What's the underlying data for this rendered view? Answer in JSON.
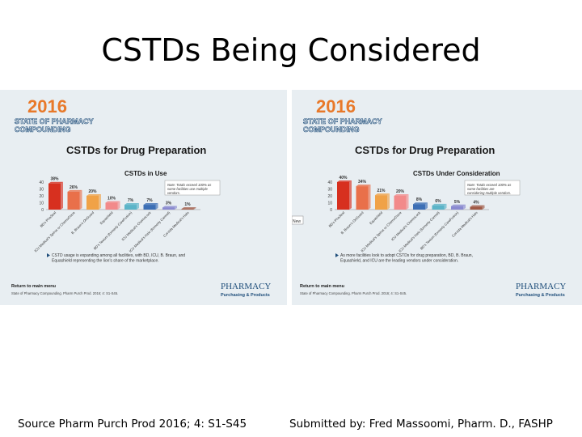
{
  "slide": {
    "title": "CSTDs Being Considered",
    "source": "Source Pharm Purch Prod 2016; 4: S1-S45",
    "submitted": "Submitted by: Fred Massoomi, Pharm. D., FASHP"
  },
  "panels": [
    {
      "year": "2016",
      "banner1": "STATE OF PHARMACY",
      "banner2": "COMPOUNDING",
      "heading": "CSTDs for Drug Preparation",
      "note": "Note: Totals exceed 100% as some facilities use multiple vendors.",
      "bullet": "CSTD usage is expanding among all facilities, with BD, ICU, B. Braun, and Equashield representing the lion's share of the marketplace.",
      "return_link": "Return to main menu",
      "citation": "State of Pharmacy Compounding. Pharm Purch Prod. 2016; 4: S1-S45.",
      "logo1": "PHARMACY",
      "logo2": "Purchasing & Products",
      "tab_label": ""
    },
    {
      "year": "2016",
      "banner1": "STATE OF PHARMACY",
      "banner2": "COMPOUNDING",
      "heading": "CSTDs for Drug Preparation",
      "note": "Note: Totals exceed 100% as some facilities are considering multiple vendors.",
      "bullet": "As more facilities look to adopt CSTDs for drug preparation, BD, B. Braun, Equashield, and ICU are the leading vendors under consideration.",
      "return_link": "Return to main menu",
      "citation": "State of Pharmacy Compounding. Pharm Purch Prod. 2016; 4: S1-S45.",
      "logo1": "PHARMACY",
      "logo2": "Purchasing & Products",
      "tab_label": "New"
    }
  ],
  "chart_data": [
    {
      "type": "bar",
      "title": "CSTDs in Use",
      "categories": [
        "BD's PhaSeal",
        "ICU Medical's Spiros or ChemoClave",
        "B. Braun's OnGuard",
        "Equashield",
        "BD's Texium (formerly CareFusion)",
        "ICU Medical's ChemoLock",
        "ICU Medical's Halo (formerly Carmel)",
        "Corvida Medical's Halo"
      ],
      "values": [
        38,
        26,
        20,
        10,
        7,
        7,
        3,
        1
      ],
      "value_labels": [
        "38%",
        "26%",
        "20%",
        "10%",
        "7%",
        "7%",
        "3%",
        "1%"
      ],
      "yticks": [
        0,
        10,
        20,
        30,
        40
      ],
      "ylim": [
        0,
        40
      ],
      "colors": [
        "#d7301f",
        "#e9704a",
        "#f0a247",
        "#f28a8a",
        "#5bb4c8",
        "#3c6fb5",
        "#8a8ad0",
        "#a05a46"
      ]
    },
    {
      "type": "bar",
      "title": "CSTDs Under Consideration",
      "categories": [
        "BD's PhaSeal",
        "B. Braun's OnGuard",
        "Equashield",
        "ICU Medical's Spiros or ChemoClave",
        "ICU Medical's ChemoLock",
        "ICU Medical's Halo (formerly Carmel)",
        "BD's Texium (formerly CareFusion)",
        "Corvida Medical's Halo"
      ],
      "values": [
        40,
        34,
        21,
        20,
        8,
        6,
        5,
        4
      ],
      "value_labels": [
        "40%",
        "34%",
        "21%",
        "20%",
        "8%",
        "6%",
        "5%",
        "4%"
      ],
      "yticks": [
        0,
        10,
        20,
        30,
        40
      ],
      "ylim": [
        0,
        40
      ],
      "colors": [
        "#d7301f",
        "#e9704a",
        "#f0a247",
        "#f28a8a",
        "#3c6fb5",
        "#5bb4c8",
        "#8a8ad0",
        "#a05a46"
      ]
    }
  ]
}
